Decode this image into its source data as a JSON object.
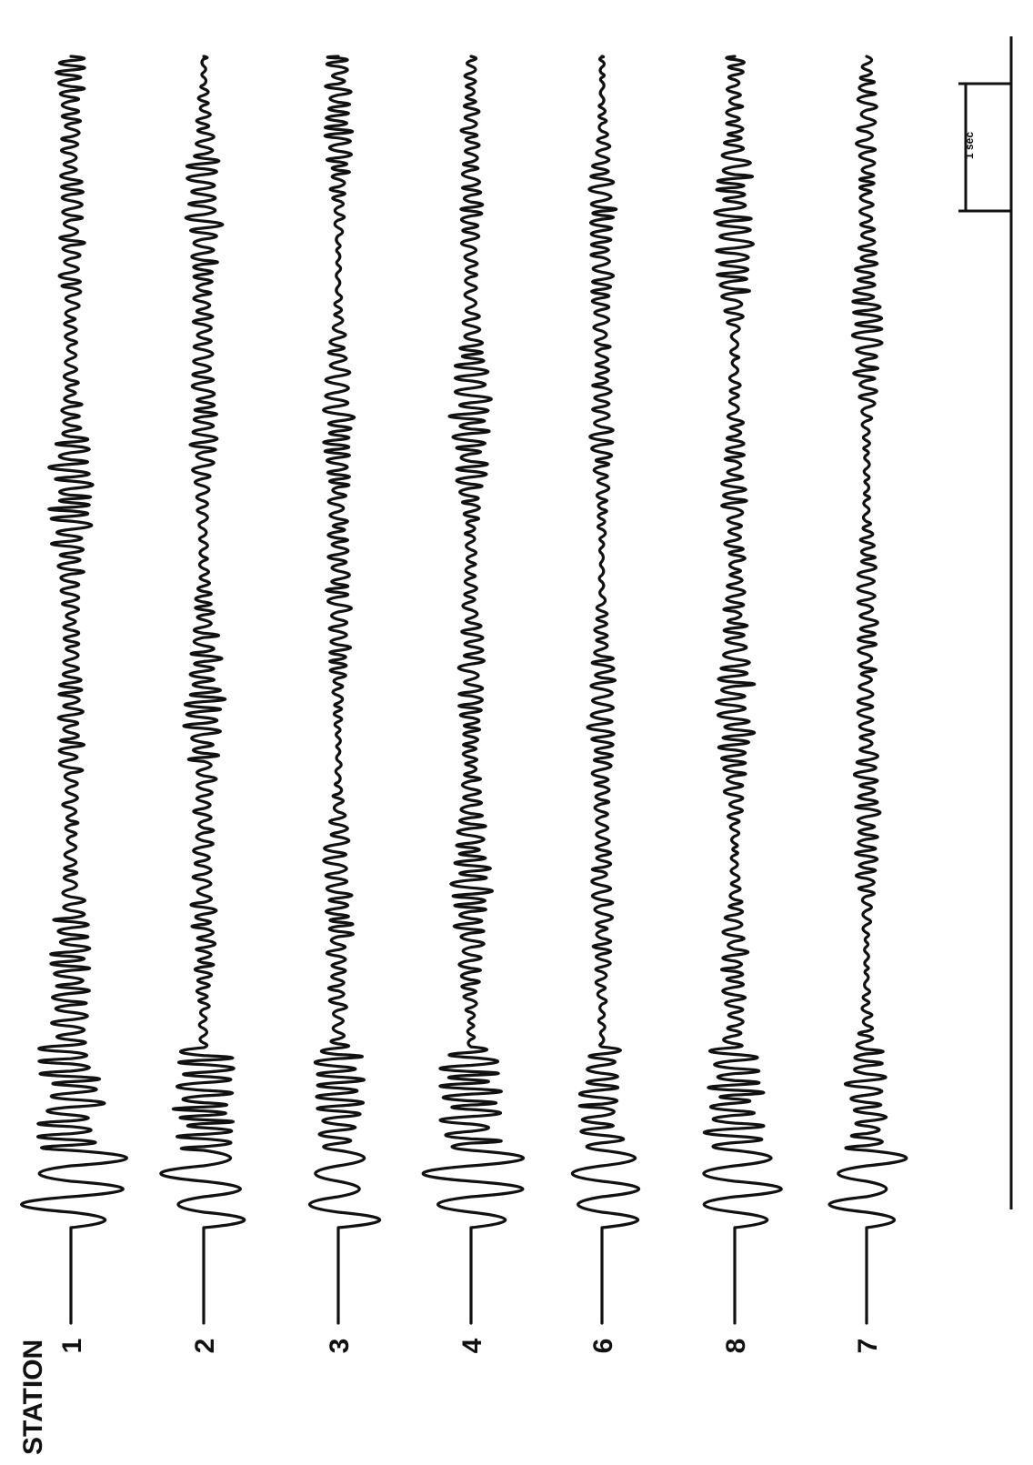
{
  "figure": {
    "heading": "STATION",
    "stations": [
      {
        "label": "1",
        "amp": 26,
        "pattern": "a",
        "seed": 3
      },
      {
        "label": "2",
        "amp": 24,
        "pattern": "b",
        "seed": 7
      },
      {
        "label": "3",
        "amp": 20,
        "pattern": "c",
        "seed": 11
      },
      {
        "label": "4",
        "amp": 24,
        "pattern": "d",
        "seed": 17
      },
      {
        "label": "6",
        "amp": 18,
        "pattern": "e",
        "seed": 23
      },
      {
        "label": "8",
        "amp": 24,
        "pattern": "f",
        "seed": 29
      },
      {
        "label": "7",
        "amp": 18,
        "pattern": "g",
        "seed": 31
      }
    ],
    "scale_bar": {
      "label": "1 sec"
    },
    "colors": {
      "ink": "#111111",
      "paper": "#ffffff"
    }
  }
}
